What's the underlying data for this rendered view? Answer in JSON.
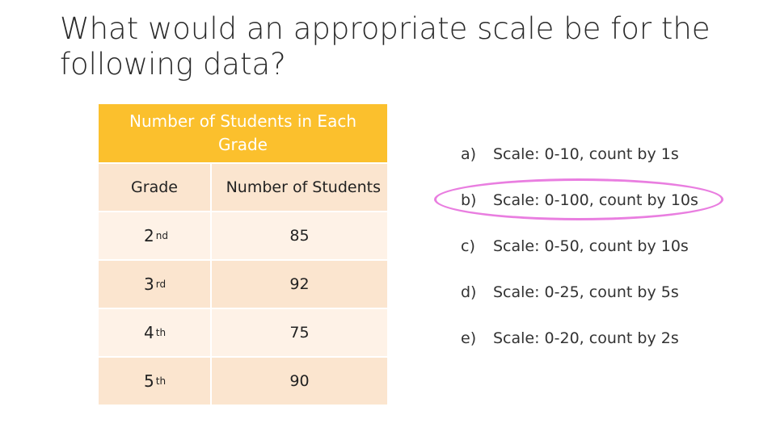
{
  "slide": {
    "title": "What would an appropriate scale be for the following data?"
  },
  "table": {
    "caption": "Number of Students in Each Grade",
    "columns": [
      "Grade",
      "Number of Students"
    ],
    "rows": [
      {
        "grade": "2",
        "ordinal": "nd",
        "count": "85"
      },
      {
        "grade": "3",
        "ordinal": "rd",
        "count": "92"
      },
      {
        "grade": "4",
        "ordinal": "th",
        "count": "75"
      },
      {
        "grade": "5",
        "ordinal": "th",
        "count": "90"
      }
    ],
    "colors": {
      "header": "#fbc02d",
      "row_dark": "#fbe5cf",
      "row_light": "#fef2e7"
    }
  },
  "options": [
    {
      "letter": "a)",
      "text": "Scale: 0-10, count by 1s"
    },
    {
      "letter": "b)",
      "text": "Scale: 0-100, count by 10s",
      "circled": true
    },
    {
      "letter": "c)",
      "text": "Scale: 0-50, count by 10s"
    },
    {
      "letter": "d)",
      "text": "Scale: 0-25, count by 5s"
    },
    {
      "letter": "e)",
      "text": "Scale: 0-20, count by 2s"
    }
  ],
  "highlight_color": "#e97ee0"
}
